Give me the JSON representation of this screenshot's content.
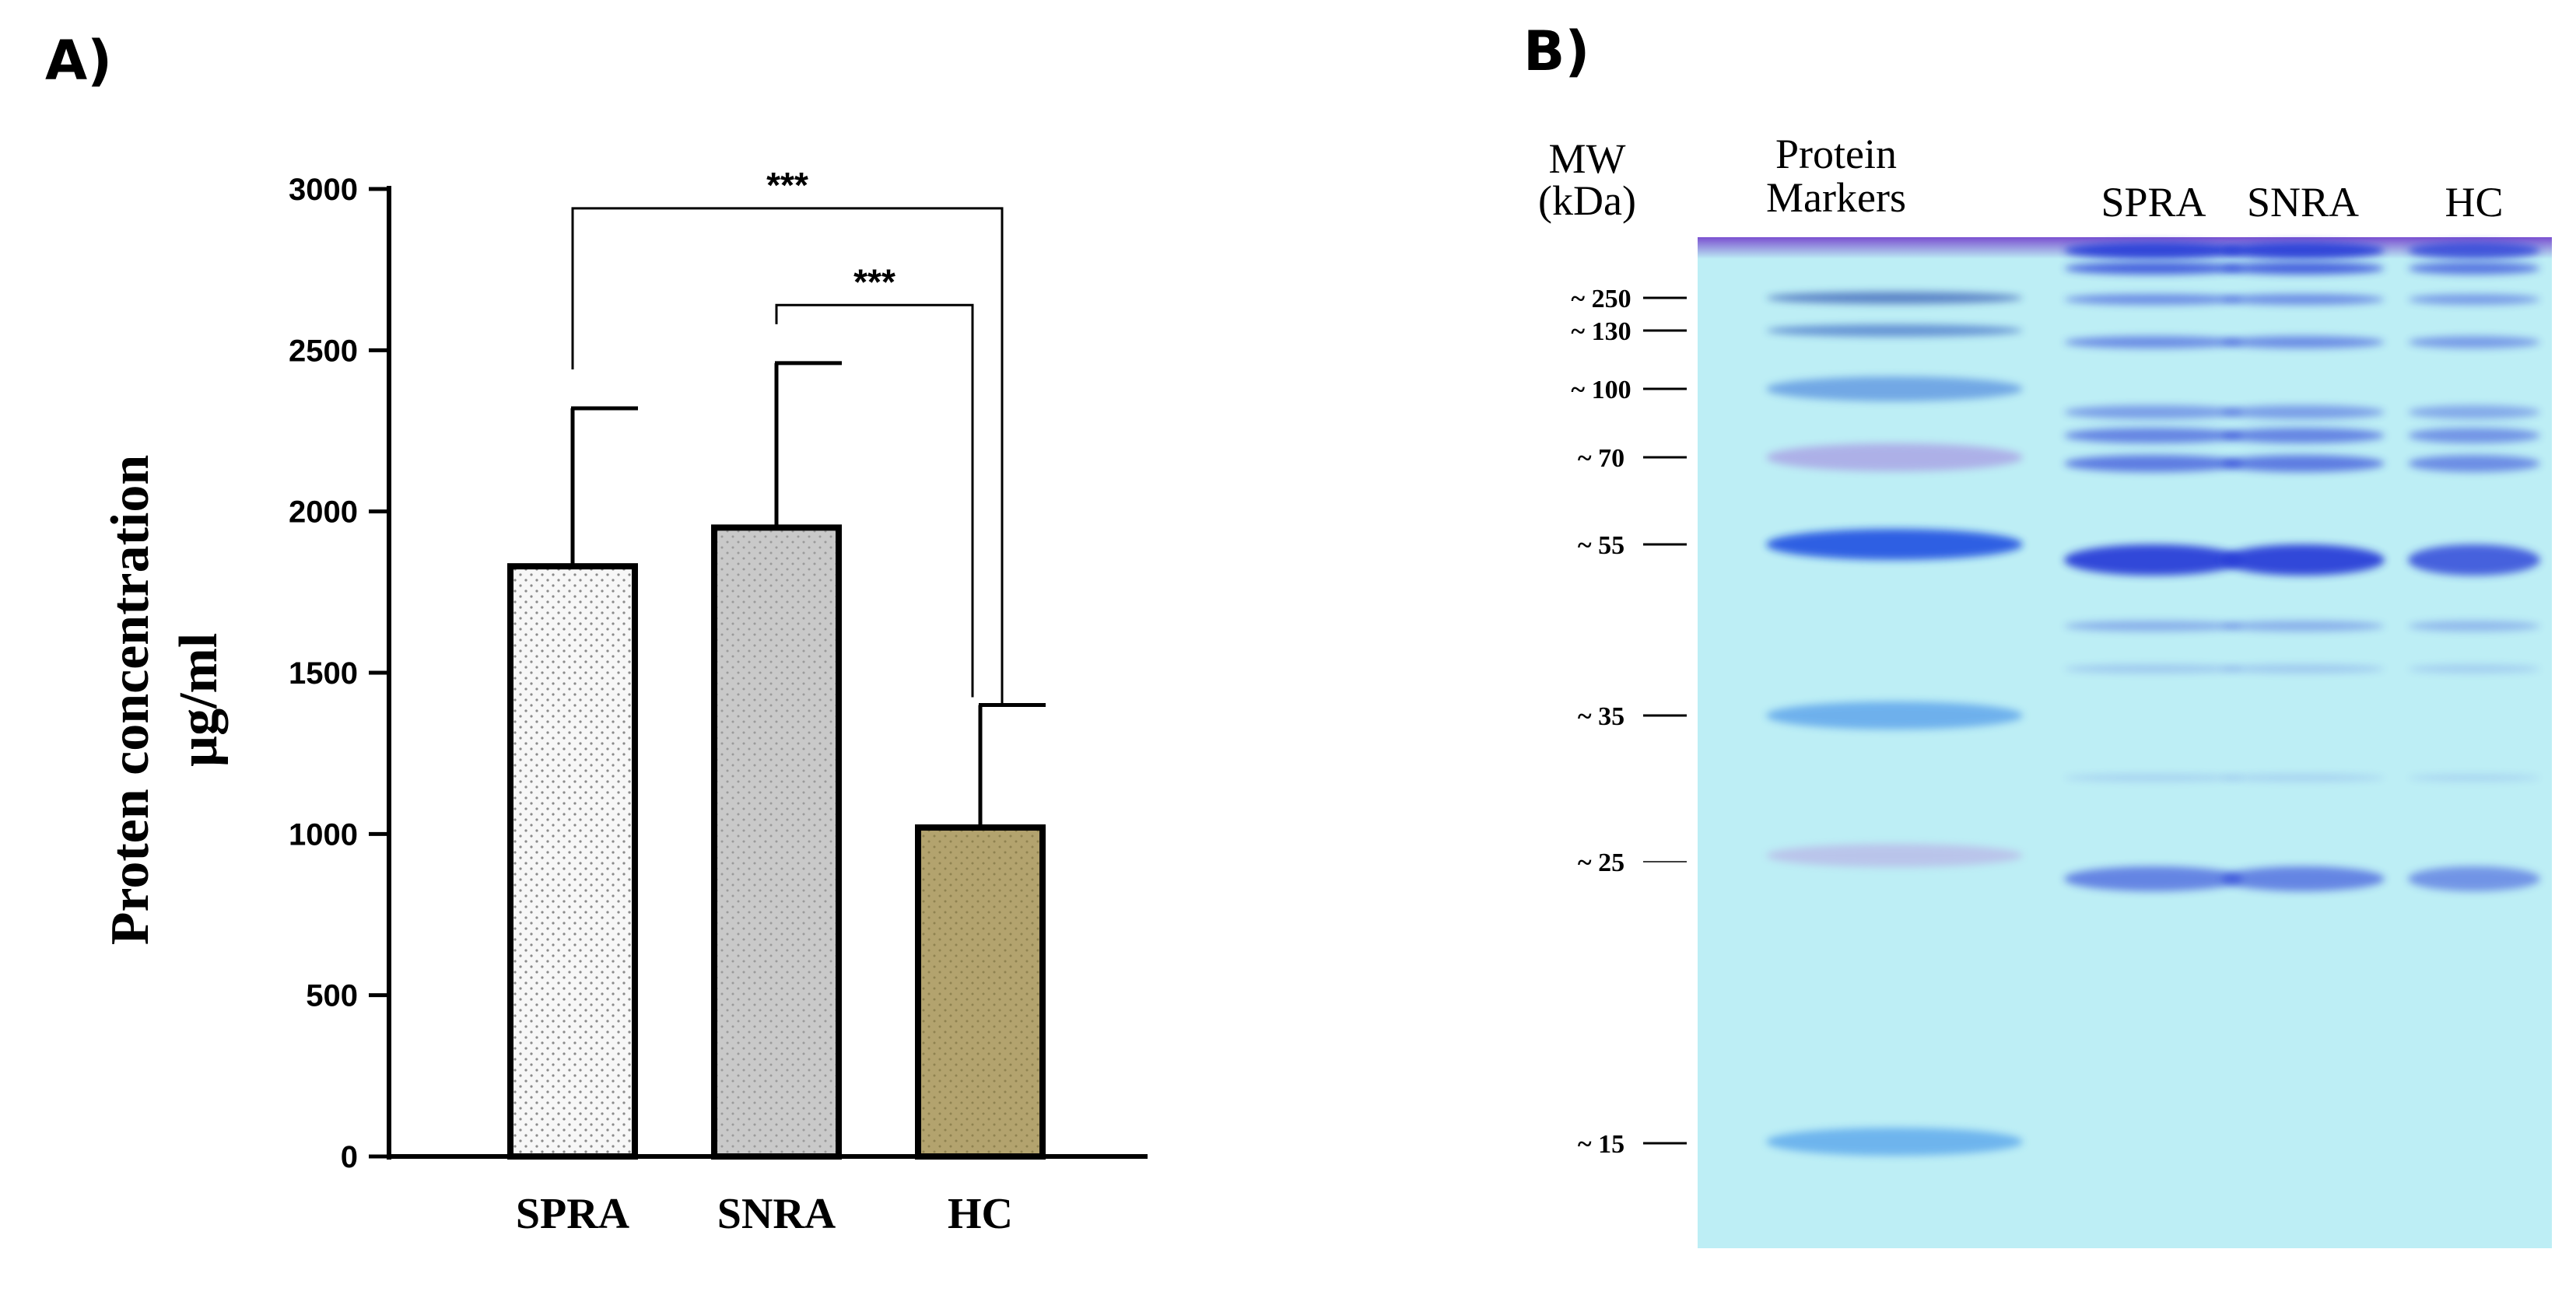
{
  "panels": {
    "a_label": "A)",
    "b_label": "B)"
  },
  "chart_data": {
    "type": "bar",
    "title": "",
    "ylabel_line1": "Proten concentration",
    "ylabel_line2": "µg/ml",
    "xlabel": "",
    "categories": [
      "SPRA",
      "SNRA",
      "HC"
    ],
    "values": [
      1830,
      1950,
      1020
    ],
    "error_upper": [
      2320,
      2460,
      1400
    ],
    "ylim": [
      0,
      3000
    ],
    "yticks": [
      0,
      500,
      1000,
      1500,
      2000,
      2500,
      3000
    ],
    "ytick_labels": [
      "0",
      "500",
      "1000",
      "1500",
      "2000",
      "2500",
      "3000"
    ],
    "bar_colors": [
      "#f5f5f5",
      "#c9c9c9",
      "#b3a36e"
    ],
    "grid": false,
    "significance": [
      {
        "from": "SPRA",
        "to": "HC",
        "label": "***",
        "y": 2940
      },
      {
        "from": "SNRA",
        "to": "HC",
        "label": "***",
        "y": 2640
      }
    ]
  },
  "gel": {
    "header_mw_line1": "MW",
    "header_mw_line2": "(kDa)",
    "header_markers_line1": "Protein",
    "header_markers_line2": "Markers",
    "lanes": [
      "SPRA",
      "SNRA",
      "HC"
    ],
    "mw_markers": [
      {
        "kda": 250,
        "label": "~ 250"
      },
      {
        "kda": 130,
        "label": "~ 130"
      },
      {
        "kda": 100,
        "label": "~ 100"
      },
      {
        "kda": 70,
        "label": "~ 70"
      },
      {
        "kda": 55,
        "label": "~ 55"
      },
      {
        "kda": 35,
        "label": "~ 35"
      },
      {
        "kda": 25,
        "label": "~ 25"
      },
      {
        "kda": 15,
        "label": "~ 15"
      }
    ],
    "background_color": "#bdeef5",
    "band_color": "#2a3fd8"
  }
}
